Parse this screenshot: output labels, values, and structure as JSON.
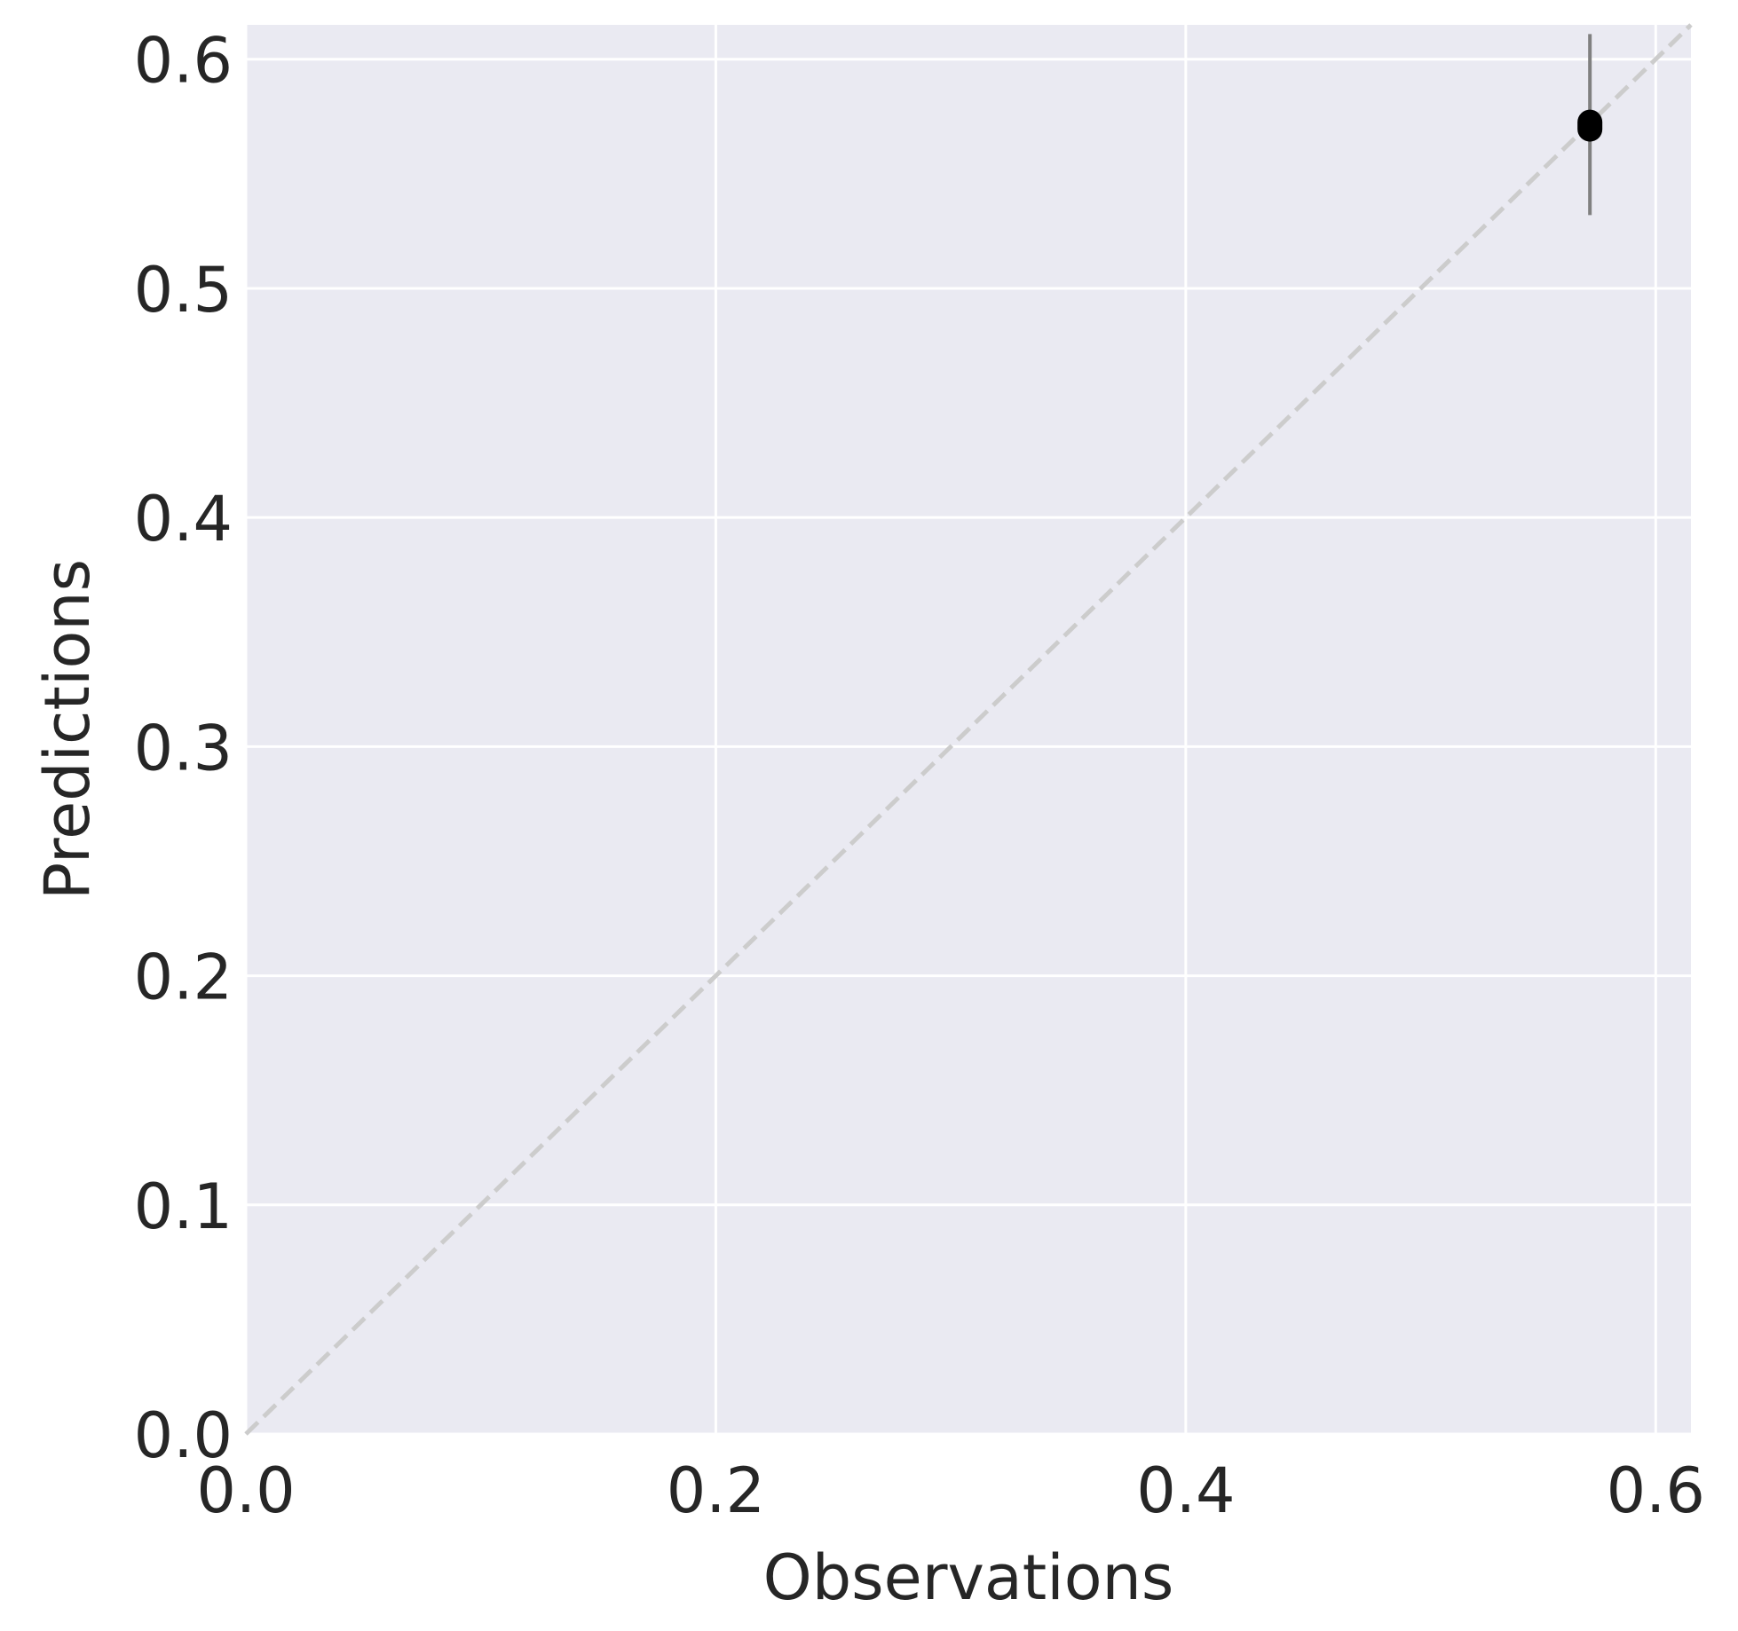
{
  "chart_data": {
    "type": "scatter",
    "title": "",
    "xlabel": "Observations",
    "ylabel": "Predictions",
    "xlim": [
      0.0,
      0.615
    ],
    "ylim": [
      0.0,
      0.615
    ],
    "xticks": [
      0.0,
      0.2,
      0.4,
      0.6
    ],
    "yticks": [
      0.0,
      0.1,
      0.2,
      0.3,
      0.4,
      0.5,
      0.6
    ],
    "xtick_labels": [
      "0.0",
      "0.2",
      "0.4",
      "0.6"
    ],
    "ytick_labels": [
      "0.0",
      "0.1",
      "0.2",
      "0.3",
      "0.4",
      "0.5",
      "0.6"
    ],
    "grid": true,
    "legend": "none",
    "reference_line": {
      "type": "identity",
      "style": "dashed",
      "color": "#cccccc"
    },
    "points": [
      {
        "x": 0.572,
        "y": 0.571,
        "y_err_low": 0.532,
        "y_err_high": 0.611
      }
    ],
    "colors": {
      "plot_background": "#eaeaf2",
      "grid": "#ffffff",
      "marker": "#000000",
      "error_bar": "#808080",
      "text": "#262626"
    }
  }
}
